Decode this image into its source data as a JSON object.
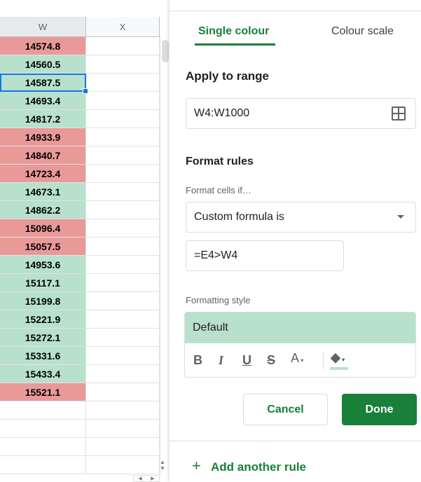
{
  "grid": {
    "columns": [
      "W",
      "X"
    ],
    "rows": [
      {
        "value": "14574.8",
        "status": "red"
      },
      {
        "value": "14560.5",
        "status": "green"
      },
      {
        "value": "14587.5",
        "status": "green"
      },
      {
        "value": "14693.4",
        "status": "green"
      },
      {
        "value": "14817.2",
        "status": "green"
      },
      {
        "value": "14933.9",
        "status": "red"
      },
      {
        "value": "14840.7",
        "status": "red"
      },
      {
        "value": "14723.4",
        "status": "red"
      },
      {
        "value": "14673.1",
        "status": "green"
      },
      {
        "value": "14862.2",
        "status": "green"
      },
      {
        "value": "15096.4",
        "status": "red"
      },
      {
        "value": "15057.5",
        "status": "red"
      },
      {
        "value": "14953.6",
        "status": "green"
      },
      {
        "value": "15117.1",
        "status": "green"
      },
      {
        "value": "15199.8",
        "status": "green"
      },
      {
        "value": "15221.9",
        "status": "green"
      },
      {
        "value": "15272.1",
        "status": "green"
      },
      {
        "value": "15331.6",
        "status": "green"
      },
      {
        "value": "15433.4",
        "status": "green"
      },
      {
        "value": "15521.1",
        "status": "red"
      }
    ],
    "selected_row": 2,
    "colors": {
      "red": "#ea9999",
      "green": "#b7e1cd",
      "selection": "#1a73e8"
    }
  },
  "panel": {
    "tabs": [
      "Single colour",
      "Colour scale"
    ],
    "active_tab": 0,
    "apply_label": "Apply to range",
    "range": "W4:W1000",
    "format_rules": "Format rules",
    "cells_if": "Format cells if…",
    "condition": "Custom formula is",
    "formula": "=E4>W4",
    "style_label": "Formatting style",
    "style_preview": "Default",
    "style_fill": "#b7e1cd",
    "cancel": "Cancel",
    "done": "Done",
    "add_rule": "Add another rule",
    "accent": "#188038"
  }
}
